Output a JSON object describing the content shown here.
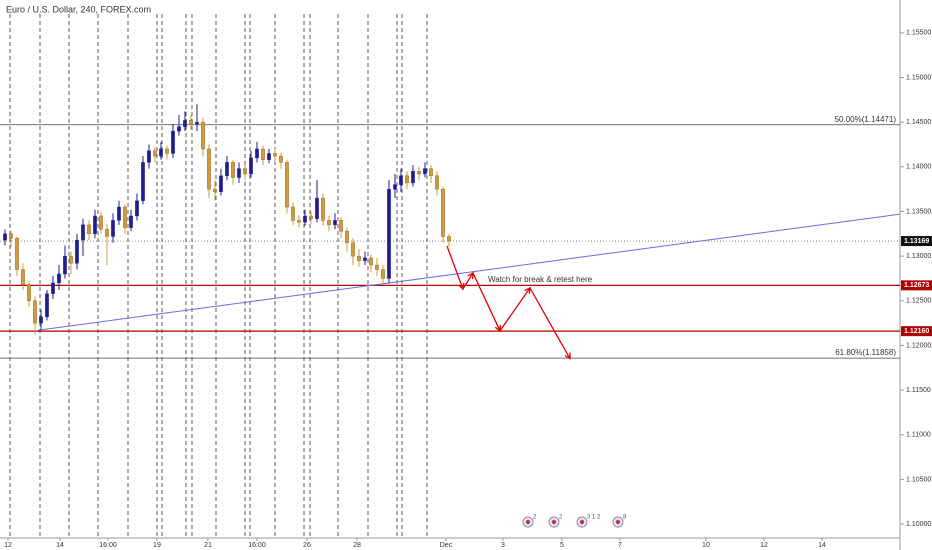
{
  "chart_data": {
    "type": "candlestick",
    "title": "Euro / U.S. Dollar, 240, FOREX.com",
    "up_color": "#1e1e8e",
    "down_color": "#d19a3c",
    "grid": false,
    "xlim": [
      -0.83,
      149.17
    ],
    "ylim": [
      1.09844,
      1.15868
    ],
    "xticks": [
      {
        "value": 0.5,
        "label": "12"
      },
      {
        "value": 9.17,
        "label": "14"
      },
      {
        "value": 17.17,
        "label": "16:00"
      },
      {
        "value": 25.33,
        "label": "19"
      },
      {
        "value": 33.83,
        "label": "21"
      },
      {
        "value": 42,
        "label": "16:00"
      },
      {
        "value": 50.33,
        "label": "26"
      },
      {
        "value": 58.67,
        "label": "28"
      },
      {
        "value": 73.5,
        "label": "Dec"
      },
      {
        "value": 83,
        "label": "3"
      },
      {
        "value": 92.83,
        "label": "5"
      },
      {
        "value": 102.5,
        "label": "7"
      },
      {
        "value": 116.83,
        "label": "10"
      },
      {
        "value": 126.5,
        "label": "12"
      },
      {
        "value": 136.17,
        "label": "14"
      }
    ],
    "yticks": [
      {
        "value": 1.1,
        "label": "1.10000"
      },
      {
        "value": 1.105,
        "label": "1.10500"
      },
      {
        "value": 1.11,
        "label": "1.11000"
      },
      {
        "value": 1.115,
        "label": "1.11500"
      },
      {
        "value": 1.12,
        "label": "1.12000"
      },
      {
        "value": 1.125,
        "label": "1.12500"
      },
      {
        "value": 1.13,
        "label": "1.13000"
      },
      {
        "value": 1.135,
        "label": "1.13500"
      },
      {
        "value": 1.14,
        "label": "1.14000"
      },
      {
        "value": 1.145,
        "label": "1.14500"
      },
      {
        "value": 1.15,
        "label": "1.15000"
      },
      {
        "value": 1.155,
        "label": "1.15500"
      }
    ],
    "ohlc": [
      [
        1.1318,
        1.133,
        1.1312,
        1.1325
      ],
      [
        1.1325,
        1.1328,
        1.131,
        1.132
      ],
      [
        1.132,
        1.1322,
        1.1278,
        1.1285
      ],
      [
        1.1285,
        1.1292,
        1.1262,
        1.1268
      ],
      [
        1.1268,
        1.1272,
        1.1243,
        1.125
      ],
      [
        1.125,
        1.1255,
        1.1212,
        1.1225
      ],
      [
        1.1225,
        1.124,
        1.1218,
        1.1232
      ],
      [
        1.1232,
        1.1262,
        1.1228,
        1.1258
      ],
      [
        1.1258,
        1.1278,
        1.1252,
        1.127
      ],
      [
        1.127,
        1.129,
        1.1262,
        1.128
      ],
      [
        1.128,
        1.1312,
        1.1275,
        1.13
      ],
      [
        1.13,
        1.1305,
        1.128,
        1.1292
      ],
      [
        1.1292,
        1.1325,
        1.1285,
        1.1318
      ],
      [
        1.1318,
        1.1342,
        1.13,
        1.1335
      ],
      [
        1.1335,
        1.134,
        1.1318,
        1.1325
      ],
      [
        1.1325,
        1.1352,
        1.132,
        1.1345
      ],
      [
        1.1345,
        1.135,
        1.1325,
        1.133
      ],
      [
        1.133,
        1.1336,
        1.129,
        1.1322
      ],
      [
        1.1322,
        1.1348,
        1.1315,
        1.134
      ],
      [
        1.134,
        1.1362,
        1.1335,
        1.1355
      ],
      [
        1.1355,
        1.1358,
        1.1325,
        1.1332
      ],
      [
        1.1332,
        1.1352,
        1.1328,
        1.1345
      ],
      [
        1.1345,
        1.137,
        1.134,
        1.1362
      ],
      [
        1.1362,
        1.1412,
        1.1358,
        1.1405
      ],
      [
        1.1405,
        1.1425,
        1.1398,
        1.1418
      ],
      [
        1.1418,
        1.1422,
        1.1405,
        1.1412
      ],
      [
        1.1412,
        1.1428,
        1.1408,
        1.142
      ],
      [
        1.142,
        1.1424,
        1.1408,
        1.1415
      ],
      [
        1.1415,
        1.1448,
        1.141,
        1.144
      ],
      [
        1.144,
        1.1458,
        1.1435,
        1.1445
      ],
      [
        1.1445,
        1.1462,
        1.144,
        1.1452
      ],
      [
        1.1452,
        1.1458,
        1.1442,
        1.1448
      ],
      [
        1.1448,
        1.147,
        1.144,
        1.145
      ],
      [
        1.145,
        1.1455,
        1.1412,
        1.142
      ],
      [
        1.142,
        1.1425,
        1.1365,
        1.1375
      ],
      [
        1.1375,
        1.1385,
        1.1362,
        1.1372
      ],
      [
        1.1372,
        1.1398,
        1.1368,
        1.139
      ],
      [
        1.139,
        1.1412,
        1.1385,
        1.1405
      ],
      [
        1.1405,
        1.1408,
        1.138,
        1.1388
      ],
      [
        1.1388,
        1.1405,
        1.1382,
        1.1398
      ],
      [
        1.1398,
        1.1402,
        1.1385,
        1.1392
      ],
      [
        1.1392,
        1.1418,
        1.1388,
        1.141
      ],
      [
        1.141,
        1.1428,
        1.1405,
        1.142
      ],
      [
        1.142,
        1.1424,
        1.1402,
        1.1408
      ],
      [
        1.1408,
        1.142,
        1.1404,
        1.1415
      ],
      [
        1.1415,
        1.142,
        1.1405,
        1.1412
      ],
      [
        1.1412,
        1.1416,
        1.1398,
        1.1405
      ],
      [
        1.1405,
        1.1408,
        1.1348,
        1.1355
      ],
      [
        1.1355,
        1.136,
        1.1335,
        1.134
      ],
      [
        1.134,
        1.1346,
        1.1332,
        1.1338
      ],
      [
        1.1338,
        1.1352,
        1.1334,
        1.1345
      ],
      [
        1.1345,
        1.135,
        1.1336,
        1.1342
      ],
      [
        1.1342,
        1.1385,
        1.1338,
        1.1365
      ],
      [
        1.1365,
        1.137,
        1.1334,
        1.134
      ],
      [
        1.134,
        1.1345,
        1.1328,
        1.1335
      ],
      [
        1.1335,
        1.1348,
        1.133,
        1.134
      ],
      [
        1.134,
        1.1344,
        1.132,
        1.1328
      ],
      [
        1.1328,
        1.1332,
        1.1305,
        1.1315
      ],
      [
        1.1315,
        1.132,
        1.129,
        1.13
      ],
      [
        1.13,
        1.1308,
        1.1288,
        1.1295
      ],
      [
        1.1295,
        1.1305,
        1.129,
        1.1298
      ],
      [
        1.1298,
        1.1302,
        1.1282,
        1.129
      ],
      [
        1.129,
        1.1298,
        1.1278,
        1.1285
      ],
      [
        1.1285,
        1.129,
        1.1268,
        1.1275
      ],
      [
        1.1275,
        1.1385,
        1.127,
        1.1375
      ],
      [
        1.1375,
        1.1392,
        1.1365,
        1.138
      ],
      [
        1.138,
        1.1398,
        1.1372,
        1.139
      ],
      [
        1.139,
        1.1395,
        1.1375,
        1.1382
      ],
      [
        1.1382,
        1.1402,
        1.1378,
        1.1395
      ],
      [
        1.1395,
        1.14,
        1.1385,
        1.1392
      ],
      [
        1.1392,
        1.1405,
        1.1388,
        1.1398
      ],
      [
        1.1398,
        1.1402,
        1.1382,
        1.139
      ],
      [
        1.139,
        1.1395,
        1.1368,
        1.1375
      ],
      [
        1.1375,
        1.1378,
        1.1315,
        1.1322
      ],
      [
        1.1322,
        1.1325,
        1.131,
        1.1317
      ]
    ],
    "levels": [
      {
        "value": 1.14471,
        "label": "50.00%(1.14471)",
        "color": "#444444"
      },
      {
        "value": 1.12673,
        "tag": "1.12673",
        "color": "#b00000"
      },
      {
        "value": 1.1216,
        "tag": "1.12160",
        "color": "#b00000"
      },
      {
        "value": 1.11858,
        "label": "61.80%(1.11858)",
        "color": "#444444"
      }
    ],
    "last_price": {
      "value": 1.13169,
      "label": "1.13169"
    },
    "trendline": {
      "x": [
        5.5,
        149.17
      ],
      "y": [
        1.1217,
        1.1347
      ],
      "color": "#6b6be0"
    },
    "projection": {
      "x": [
        73.67,
        76.33,
        78,
        82.5,
        87.5,
        94.17
      ],
      "y": [
        1.13113,
        1.12633,
        1.12811,
        1.12164,
        1.12644,
        1.11852
      ],
      "color": "#e00000"
    },
    "annotation": "Watch for break & retest here",
    "events": [
      "2",
      "2",
      "3 1 2",
      "8"
    ]
  }
}
